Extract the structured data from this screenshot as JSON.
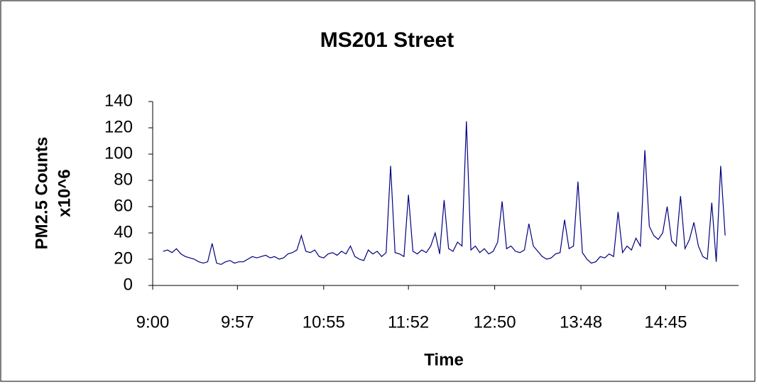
{
  "chart_data": {
    "type": "line",
    "title": "MS201 Street",
    "ylabel": [
      "PM2.5 Counts",
      "x10^6"
    ],
    "xlabel": "Time",
    "xlim": [
      540,
      934
    ],
    "xticks": [
      {
        "value": 540,
        "label": "9:00"
      },
      {
        "value": 597,
        "label": "9:57"
      },
      {
        "value": 655,
        "label": "10:55"
      },
      {
        "value": 712,
        "label": "11:52"
      },
      {
        "value": 770,
        "label": "12:50"
      },
      {
        "value": 828,
        "label": "13:48"
      },
      {
        "value": 885,
        "label": "14:45"
      }
    ],
    "ylim": [
      0,
      140
    ],
    "yticks": [
      0,
      20,
      40,
      60,
      80,
      100,
      120,
      140
    ],
    "grid": false,
    "x": [
      547,
      550,
      553,
      556,
      559,
      562,
      565,
      568,
      571,
      574,
      577,
      580,
      583,
      586,
      589,
      592,
      595,
      598,
      601,
      604,
      607,
      610,
      613,
      616,
      619,
      622,
      625,
      628,
      631,
      634,
      637,
      640,
      643,
      646,
      649,
      652,
      655,
      658,
      661,
      664,
      667,
      670,
      673,
      676,
      679,
      682,
      685,
      688,
      691,
      694,
      697,
      700,
      703,
      706,
      709,
      712,
      715,
      718,
      721,
      724,
      727,
      730,
      733,
      736,
      739,
      742,
      745,
      748,
      751,
      754,
      757,
      760,
      763,
      766,
      769,
      772,
      775,
      778,
      781,
      784,
      787,
      790,
      793,
      796,
      799,
      802,
      805,
      808,
      811,
      814,
      817,
      820,
      823,
      826,
      829,
      832,
      835,
      838,
      841,
      844,
      847,
      850,
      853,
      856,
      859,
      862,
      865,
      868,
      871,
      874,
      877,
      880,
      883,
      886,
      889,
      892,
      895,
      898,
      901,
      904,
      907,
      910,
      913,
      916,
      919,
      922,
      925
    ],
    "series": [
      {
        "name": "PM2.5",
        "color": "#000080",
        "values": [
          26,
          27,
          25,
          28,
          24,
          22,
          21,
          20,
          18,
          17,
          18,
          32,
          17,
          16,
          18,
          19,
          17,
          18,
          18,
          20,
          22,
          21,
          22,
          23,
          21,
          22,
          20,
          21,
          24,
          25,
          27,
          38,
          26,
          25,
          27,
          22,
          21,
          24,
          25,
          23,
          26,
          24,
          30,
          22,
          20,
          19,
          27,
          24,
          26,
          22,
          25,
          91,
          25,
          24,
          22,
          69,
          26,
          24,
          27,
          25,
          30,
          40,
          24,
          65,
          28,
          26,
          33,
          30,
          125,
          27,
          30,
          25,
          28,
          24,
          26,
          33,
          64,
          28,
          30,
          26,
          25,
          27,
          47,
          30,
          26,
          22,
          20,
          21,
          24,
          25,
          50,
          28,
          30,
          79,
          25,
          20,
          17,
          18,
          22,
          21,
          24,
          22,
          56,
          25,
          30,
          27,
          36,
          30,
          103,
          45,
          38,
          35,
          40,
          60,
          34,
          30,
          68,
          28,
          35,
          48,
          30,
          22,
          20,
          63,
          18,
          91,
          38
        ]
      }
    ]
  }
}
